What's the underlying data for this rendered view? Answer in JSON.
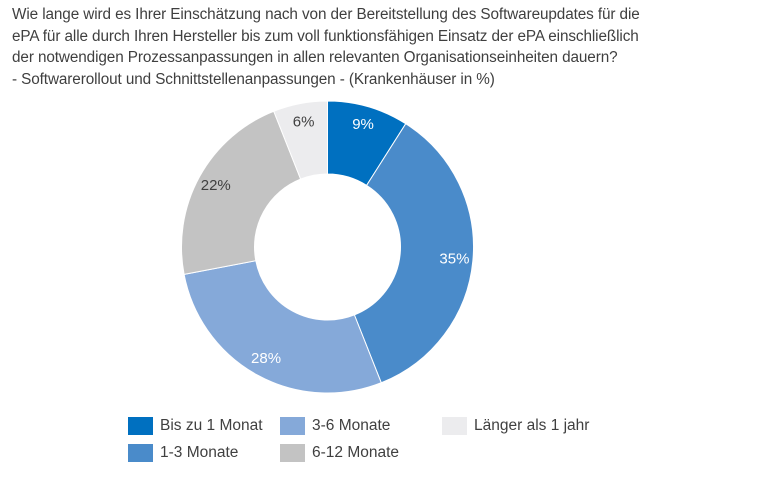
{
  "title_lines": [
    "Wie lange wird es Ihrer Einschätzung nach von der Bereitstellung des Softwareupdates für die",
    "ePA für alle durch Ihren Hersteller bis zum voll funktionsfähigen Einsatz der ePA einschließlich",
    "der notwendigen Prozessanpassungen in allen relevanten Organisationseinheiten dauern?",
    "- Softwarerollout und Schnittstellenanpassungen - (Krankenhäuser in %)"
  ],
  "chart_data": {
    "type": "pie",
    "variant": "donut",
    "title": "Wie lange wird es Ihrer Einschätzung nach von der Bereitstellung des Softwareupdates für die ePA für alle durch Ihren Hersteller bis zum voll funktionsfähigen Einsatz der ePA einschließlich der notwendigen Prozessanpassungen in allen relevanten Organisationseinheiten dauern? - Softwarerollout und Schnittstellenanpassungen - (Krankenhäuser in %)",
    "unit": "%",
    "start_angle": "12 o'clock, clockwise",
    "legend_position": "bottom",
    "slices": [
      {
        "label": "Bis zu 1 Monat",
        "value": 9,
        "data_label": "9%",
        "color": "#0070c0",
        "label_color": "#ffffff"
      },
      {
        "label": "1-3 Monate",
        "value": 35,
        "data_label": "35%",
        "color": "#4a8bca",
        "label_color": "#ffffff"
      },
      {
        "label": "3-6 Monate",
        "value": 28,
        "data_label": "28%",
        "color": "#85a9d9",
        "label_color": "#ffffff"
      },
      {
        "label": "6-12 Monate",
        "value": 22,
        "data_label": "22%",
        "color": "#c3c3c3",
        "label_color": "#404040"
      },
      {
        "label": "Länger als 1 jahr",
        "value": 6,
        "data_label": "6%",
        "color": "#ececee",
        "label_color": "#404040"
      }
    ],
    "legend_order": [
      "Bis zu 1 Monat",
      "3-6 Monate",
      "Länger als 1 jahr",
      "1-3 Monate",
      "6-12 Monate"
    ]
  }
}
